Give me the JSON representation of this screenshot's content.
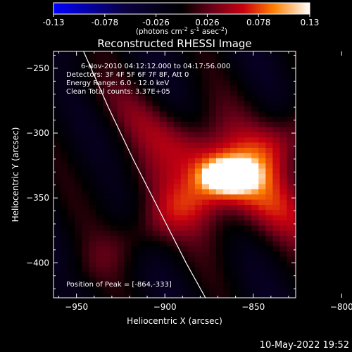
{
  "chart_data": {
    "type": "heatmap",
    "title": "Reconstructed RHESSI Image",
    "xlabel": "Heliocentric X (arcsec)",
    "ylabel": "Heliocentric Y (arcsec)",
    "xlim": [
      -963,
      -826
    ],
    "ylim": [
      -427,
      -237
    ],
    "x_ticks": [
      -950,
      -900,
      -850,
      -800
    ],
    "y_ticks": [
      -250,
      -300,
      -350,
      -400
    ],
    "colorbar": {
      "ticks": [
        -0.13,
        -0.078,
        -0.026,
        0.026,
        0.078,
        0.13
      ],
      "range": [
        -0.13,
        0.13
      ],
      "label_parts": [
        "(photons cm",
        "-2",
        " s",
        "-1",
        " asec",
        "-2",
        ")"
      ]
    },
    "annotations": [
      "6-Nov-2010 04:12:12.000 to 04:17:56.000",
      "Detectors: 3F 4F 5F 6F 7F 8F, Att 0",
      "Energy Range: 6.0 - 12.0 keV",
      "Clean    Total counts: 3.37E+05"
    ],
    "peak_label": "Position of Peak = [-864,-333]",
    "peak": {
      "x": -864,
      "y": -333,
      "value": 0.13
    },
    "limb_curve": [
      [
        -946,
        -237
      ],
      [
        -932,
        -280
      ],
      [
        -918,
        -320
      ],
      [
        -903,
        -360
      ],
      [
        -888,
        -400
      ],
      [
        -877,
        -427
      ]
    ],
    "grid": false,
    "colors": {
      "background": "#000000",
      "limb": "#ffffff"
    }
  },
  "datestamp": "10-May-2022 19:52"
}
